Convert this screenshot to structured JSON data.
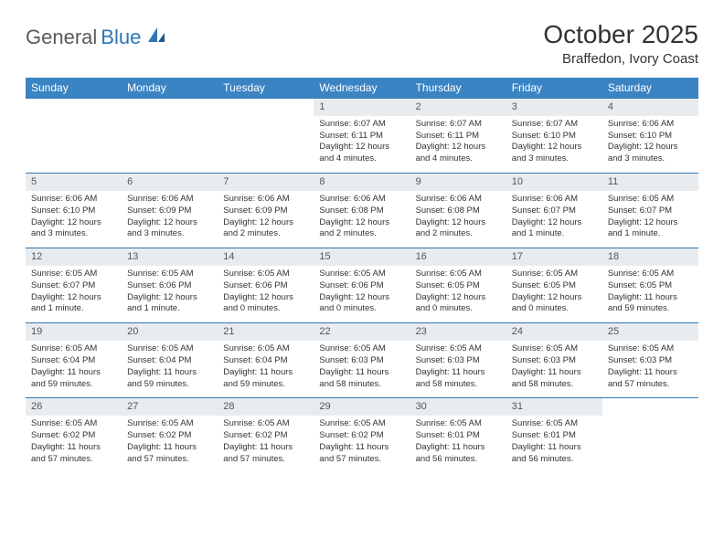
{
  "brand": {
    "part1": "General",
    "part2": "Blue"
  },
  "title": "October 2025",
  "location": "Braffedon, Ivory Coast",
  "colors": {
    "header_bg": "#3b84c4",
    "week_border": "#2d77b5",
    "daynum_bg": "#e9ecef",
    "text": "#333333",
    "logo_gray": "#5a5a5a",
    "logo_blue": "#2d77b5"
  },
  "day_labels": [
    "Sunday",
    "Monday",
    "Tuesday",
    "Wednesday",
    "Thursday",
    "Friday",
    "Saturday"
  ],
  "weeks": [
    [
      {
        "n": "",
        "sr": "",
        "ss": "",
        "dl": ""
      },
      {
        "n": "",
        "sr": "",
        "ss": "",
        "dl": ""
      },
      {
        "n": "",
        "sr": "",
        "ss": "",
        "dl": ""
      },
      {
        "n": "1",
        "sr": "Sunrise: 6:07 AM",
        "ss": "Sunset: 6:11 PM",
        "dl": "Daylight: 12 hours and 4 minutes."
      },
      {
        "n": "2",
        "sr": "Sunrise: 6:07 AM",
        "ss": "Sunset: 6:11 PM",
        "dl": "Daylight: 12 hours and 4 minutes."
      },
      {
        "n": "3",
        "sr": "Sunrise: 6:07 AM",
        "ss": "Sunset: 6:10 PM",
        "dl": "Daylight: 12 hours and 3 minutes."
      },
      {
        "n": "4",
        "sr": "Sunrise: 6:06 AM",
        "ss": "Sunset: 6:10 PM",
        "dl": "Daylight: 12 hours and 3 minutes."
      }
    ],
    [
      {
        "n": "5",
        "sr": "Sunrise: 6:06 AM",
        "ss": "Sunset: 6:10 PM",
        "dl": "Daylight: 12 hours and 3 minutes."
      },
      {
        "n": "6",
        "sr": "Sunrise: 6:06 AM",
        "ss": "Sunset: 6:09 PM",
        "dl": "Daylight: 12 hours and 3 minutes."
      },
      {
        "n": "7",
        "sr": "Sunrise: 6:06 AM",
        "ss": "Sunset: 6:09 PM",
        "dl": "Daylight: 12 hours and 2 minutes."
      },
      {
        "n": "8",
        "sr": "Sunrise: 6:06 AM",
        "ss": "Sunset: 6:08 PM",
        "dl": "Daylight: 12 hours and 2 minutes."
      },
      {
        "n": "9",
        "sr": "Sunrise: 6:06 AM",
        "ss": "Sunset: 6:08 PM",
        "dl": "Daylight: 12 hours and 2 minutes."
      },
      {
        "n": "10",
        "sr": "Sunrise: 6:06 AM",
        "ss": "Sunset: 6:07 PM",
        "dl": "Daylight: 12 hours and 1 minute."
      },
      {
        "n": "11",
        "sr": "Sunrise: 6:05 AM",
        "ss": "Sunset: 6:07 PM",
        "dl": "Daylight: 12 hours and 1 minute."
      }
    ],
    [
      {
        "n": "12",
        "sr": "Sunrise: 6:05 AM",
        "ss": "Sunset: 6:07 PM",
        "dl": "Daylight: 12 hours and 1 minute."
      },
      {
        "n": "13",
        "sr": "Sunrise: 6:05 AM",
        "ss": "Sunset: 6:06 PM",
        "dl": "Daylight: 12 hours and 1 minute."
      },
      {
        "n": "14",
        "sr": "Sunrise: 6:05 AM",
        "ss": "Sunset: 6:06 PM",
        "dl": "Daylight: 12 hours and 0 minutes."
      },
      {
        "n": "15",
        "sr": "Sunrise: 6:05 AM",
        "ss": "Sunset: 6:06 PM",
        "dl": "Daylight: 12 hours and 0 minutes."
      },
      {
        "n": "16",
        "sr": "Sunrise: 6:05 AM",
        "ss": "Sunset: 6:05 PM",
        "dl": "Daylight: 12 hours and 0 minutes."
      },
      {
        "n": "17",
        "sr": "Sunrise: 6:05 AM",
        "ss": "Sunset: 6:05 PM",
        "dl": "Daylight: 12 hours and 0 minutes."
      },
      {
        "n": "18",
        "sr": "Sunrise: 6:05 AM",
        "ss": "Sunset: 6:05 PM",
        "dl": "Daylight: 11 hours and 59 minutes."
      }
    ],
    [
      {
        "n": "19",
        "sr": "Sunrise: 6:05 AM",
        "ss": "Sunset: 6:04 PM",
        "dl": "Daylight: 11 hours and 59 minutes."
      },
      {
        "n": "20",
        "sr": "Sunrise: 6:05 AM",
        "ss": "Sunset: 6:04 PM",
        "dl": "Daylight: 11 hours and 59 minutes."
      },
      {
        "n": "21",
        "sr": "Sunrise: 6:05 AM",
        "ss": "Sunset: 6:04 PM",
        "dl": "Daylight: 11 hours and 59 minutes."
      },
      {
        "n": "22",
        "sr": "Sunrise: 6:05 AM",
        "ss": "Sunset: 6:03 PM",
        "dl": "Daylight: 11 hours and 58 minutes."
      },
      {
        "n": "23",
        "sr": "Sunrise: 6:05 AM",
        "ss": "Sunset: 6:03 PM",
        "dl": "Daylight: 11 hours and 58 minutes."
      },
      {
        "n": "24",
        "sr": "Sunrise: 6:05 AM",
        "ss": "Sunset: 6:03 PM",
        "dl": "Daylight: 11 hours and 58 minutes."
      },
      {
        "n": "25",
        "sr": "Sunrise: 6:05 AM",
        "ss": "Sunset: 6:03 PM",
        "dl": "Daylight: 11 hours and 57 minutes."
      }
    ],
    [
      {
        "n": "26",
        "sr": "Sunrise: 6:05 AM",
        "ss": "Sunset: 6:02 PM",
        "dl": "Daylight: 11 hours and 57 minutes."
      },
      {
        "n": "27",
        "sr": "Sunrise: 6:05 AM",
        "ss": "Sunset: 6:02 PM",
        "dl": "Daylight: 11 hours and 57 minutes."
      },
      {
        "n": "28",
        "sr": "Sunrise: 6:05 AM",
        "ss": "Sunset: 6:02 PM",
        "dl": "Daylight: 11 hours and 57 minutes."
      },
      {
        "n": "29",
        "sr": "Sunrise: 6:05 AM",
        "ss": "Sunset: 6:02 PM",
        "dl": "Daylight: 11 hours and 57 minutes."
      },
      {
        "n": "30",
        "sr": "Sunrise: 6:05 AM",
        "ss": "Sunset: 6:01 PM",
        "dl": "Daylight: 11 hours and 56 minutes."
      },
      {
        "n": "31",
        "sr": "Sunrise: 6:05 AM",
        "ss": "Sunset: 6:01 PM",
        "dl": "Daylight: 11 hours and 56 minutes."
      },
      {
        "n": "",
        "sr": "",
        "ss": "",
        "dl": ""
      }
    ]
  ]
}
